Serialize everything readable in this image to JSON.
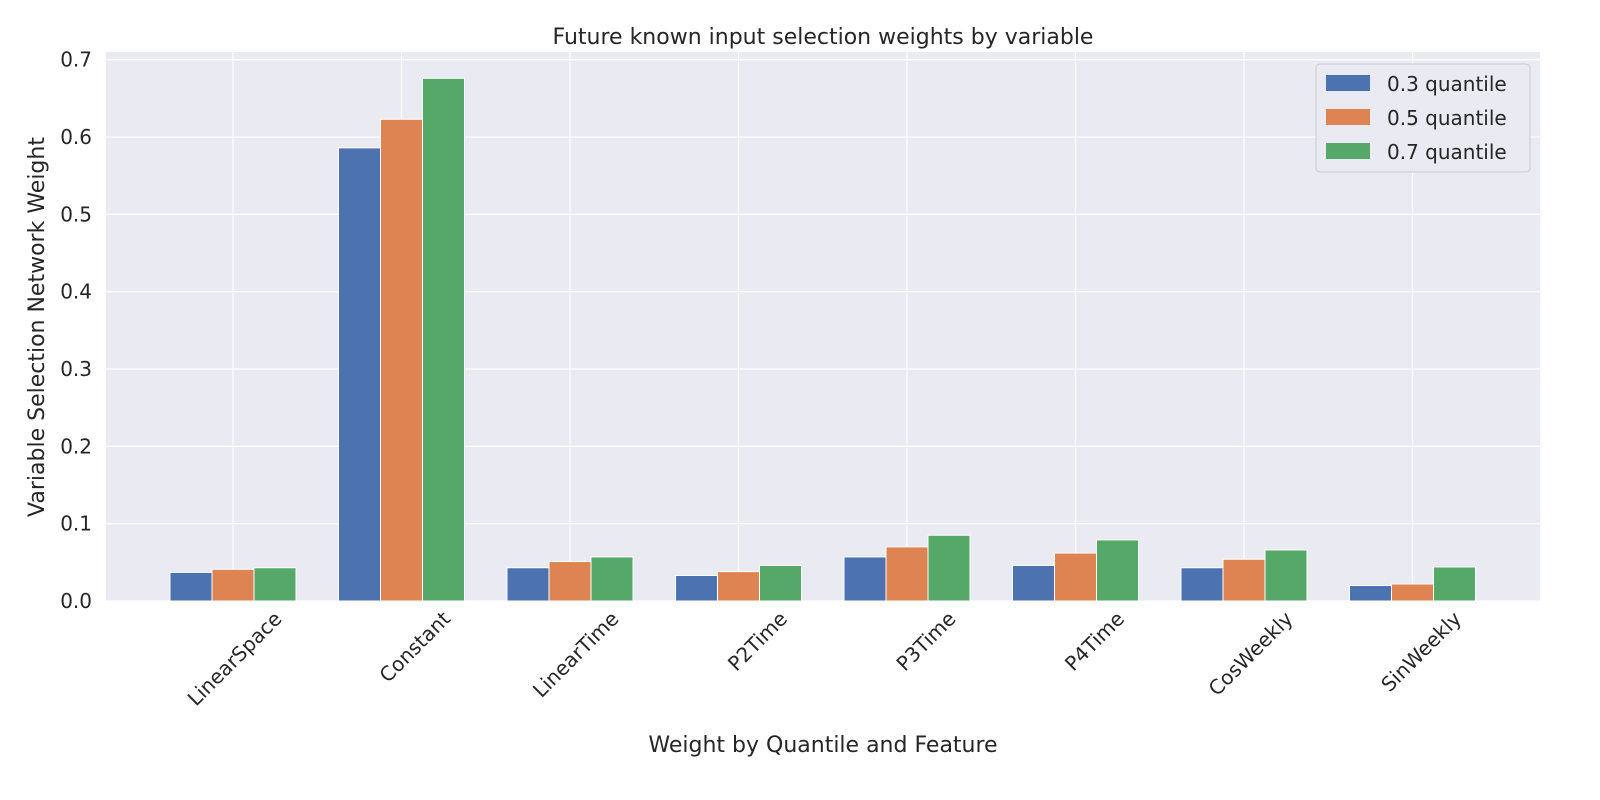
{
  "chart_data": {
    "type": "bar",
    "title": "Future known input selection weights by variable",
    "xlabel": "Weight by Quantile and Feature",
    "ylabel": "Variable Selection Network Weight",
    "categories": [
      "LinearSpace",
      "Constant",
      "LinearTime",
      "P2Time",
      "P3Time",
      "P4Time",
      "CosWeekly",
      "SinWeekly"
    ],
    "series": [
      {
        "name": "0.3 quantile",
        "color": "#4c72b0",
        "values": [
          0.037,
          0.586,
          0.043,
          0.033,
          0.057,
          0.046,
          0.043,
          0.02
        ]
      },
      {
        "name": "0.5 quantile",
        "color": "#dd8452",
        "values": [
          0.041,
          0.623,
          0.051,
          0.038,
          0.07,
          0.062,
          0.054,
          0.022
        ]
      },
      {
        "name": "0.7 quantile",
        "color": "#55a868",
        "values": [
          0.043,
          0.676,
          0.057,
          0.046,
          0.085,
          0.079,
          0.066,
          0.044
        ]
      }
    ],
    "ylim": [
      0,
      0.71
    ],
    "yticks": [
      "0.0",
      "0.1",
      "0.2",
      "0.3",
      "0.4",
      "0.5",
      "0.6",
      "0.7"
    ],
    "grid": true,
    "legend_position": "top-right",
    "background": "#eaeaf2"
  }
}
